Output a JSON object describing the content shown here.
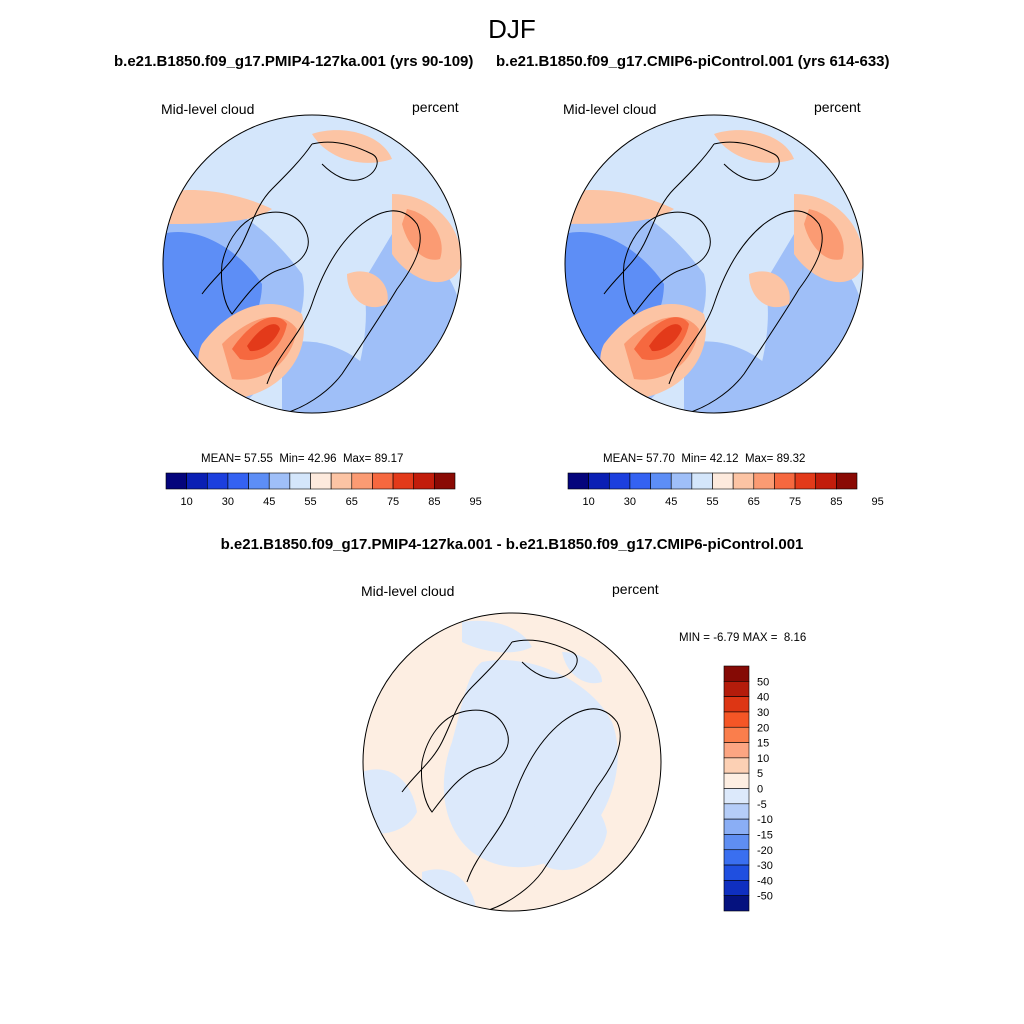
{
  "figure": {
    "title": "DJF"
  },
  "panels": [
    {
      "case_title": "b.e21.B1850.f09_g17.PMIP4-127ka.001 (yrs 90-109)",
      "variable": "Mid-level cloud",
      "units": "percent",
      "stats": {
        "mean_label": "MEAN=",
        "mean": "57.55",
        "min_label": "Min=",
        "min": "42.96",
        "max_label": "Max=",
        "max": "89.17"
      }
    },
    {
      "case_title": "b.e21.B1850.f09_g17.CMIP6-piControl.001 (yrs 614-633)",
      "variable": "Mid-level cloud",
      "units": "percent",
      "stats": {
        "mean_label": "MEAN=",
        "mean": "57.70",
        "min_label": "Min=",
        "min": "42.12",
        "max_label": "Max=",
        "max": "89.32"
      }
    }
  ],
  "diff_panel": {
    "case_title": "b.e21.B1850.f09_g17.PMIP4-127ka.001 - b.e21.B1850.f09_g17.CMIP6-piControl.001",
    "variable": "Mid-level cloud",
    "units": "percent",
    "stats": {
      "min_label": "MIN =",
      "min": "-6.79",
      "max_label": "MAX =",
      "max": "8.16"
    }
  },
  "colorbars": {
    "abs": {
      "tick_labels": [
        "10",
        "30",
        "45",
        "55",
        "65",
        "75",
        "85",
        "95"
      ],
      "colors": [
        "#04047c",
        "#0a1fb4",
        "#1c3fde",
        "#3462f2",
        "#5d8ef6",
        "#9fbff8",
        "#d4e6fb",
        "#fdeadd",
        "#fcc4a4",
        "#fb9b73",
        "#f6683f",
        "#e33a1a",
        "#c21d0b",
        "#8a0a04"
      ]
    },
    "diff": {
      "tick_labels": [
        "50",
        "40",
        "30",
        "20",
        "15",
        "10",
        "5",
        "0",
        "-5",
        "-10",
        "-15",
        "-20",
        "-30",
        "-40",
        "-50"
      ],
      "colors": [
        "#850a05",
        "#b41c0b",
        "#dd3614",
        "#f55626",
        "#fa7e4c",
        "#fca582",
        "#fcd0b4",
        "#fdeee2",
        "#dce9fb",
        "#b5cdf8",
        "#8aaef5",
        "#5f8ef2",
        "#3a6ff0",
        "#1f4fe0",
        "#0f2fc0",
        "#05127f"
      ]
    }
  }
}
